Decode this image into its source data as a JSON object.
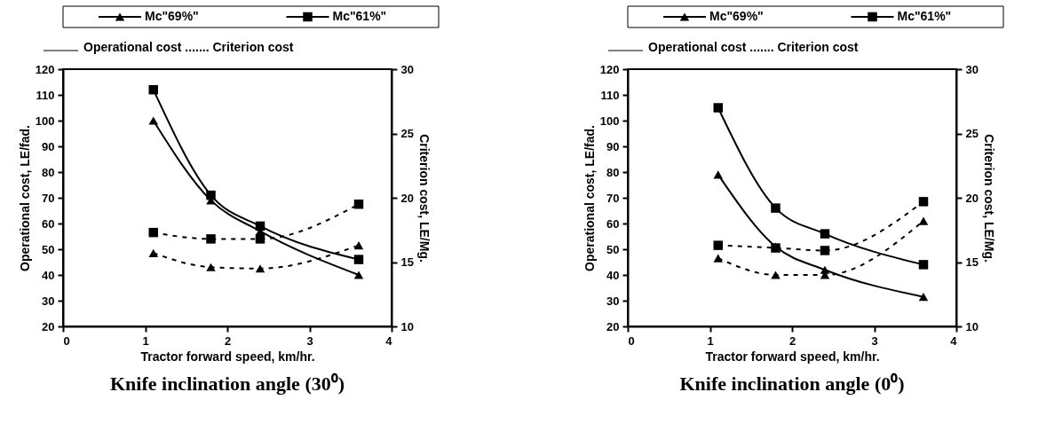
{
  "chart_data": [
    {
      "type": "line",
      "title": "Knife inclination angle (30⁰)",
      "xlabel": "Tractor forward speed, km/hr.",
      "ylabel": "Operational cost, LE/fad.",
      "y2label": "Criterion cost, LE/Mg.",
      "x": [
        1.1,
        1.8,
        2.4,
        3.6
      ],
      "xlim": [
        0,
        4
      ],
      "xticks": [
        0,
        1,
        2,
        3,
        4
      ],
      "ylim": [
        20,
        120
      ],
      "yticks": [
        20,
        30,
        40,
        50,
        60,
        70,
        80,
        90,
        100,
        110,
        120
      ],
      "y2lim": [
        10,
        30
      ],
      "y2ticks": [
        10,
        15,
        20,
        25,
        30
      ],
      "grid": false,
      "legend": "top",
      "annotations": [
        "Operational cost ....... Criterion cost"
      ],
      "series": [
        {
          "name": "Mc\"69%\"",
          "color": "#000000",
          "marker": "triangle",
          "line_style": "solid",
          "values": [
            100,
            69,
            57,
            40
          ]
        },
        {
          "name": "Mc\"61%\"",
          "color": "#000000",
          "marker": "square",
          "line_style": "solid",
          "values": [
            112,
            71,
            59,
            46
          ]
        },
        {
          "color": "#000000",
          "marker": "triangle",
          "line_style": "dashed",
          "axis": "y2",
          "values": [
            15.7,
            14.6,
            14.5,
            16.3
          ]
        },
        {
          "color": "#000000",
          "marker": "square",
          "line_style": "dashed",
          "axis": "y2",
          "values": [
            17.3,
            16.8,
            16.8,
            19.5
          ]
        }
      ]
    },
    {
      "type": "line",
      "title": "Knife inclination angle (0⁰)",
      "xlabel": "Tractor forward speed, km/hr.",
      "ylabel": "Operational cost, LE/fad.",
      "y2label": "Criterion cost, LE/Mg.",
      "x": [
        1.1,
        1.8,
        2.4,
        3.6
      ],
      "xlim": [
        0,
        4
      ],
      "xticks": [
        0,
        1,
        2,
        3,
        4
      ],
      "ylim": [
        20,
        120
      ],
      "yticks": [
        20,
        30,
        40,
        50,
        60,
        70,
        80,
        90,
        100,
        110,
        120
      ],
      "y2lim": [
        10,
        30
      ],
      "y2ticks": [
        10,
        15,
        20,
        25,
        30
      ],
      "grid": false,
      "legend": "top",
      "annotations": [
        "Operational cost ....... Criterion cost"
      ],
      "series": [
        {
          "name": "Mc\"69%\"",
          "color": "#000000",
          "marker": "triangle",
          "line_style": "solid",
          "values": [
            79,
            51,
            42,
            31.5
          ]
        },
        {
          "name": "Mc\"61%\"",
          "color": "#000000",
          "marker": "square",
          "line_style": "solid",
          "values": [
            105,
            66,
            56,
            44
          ]
        },
        {
          "color": "#000000",
          "marker": "triangle",
          "line_style": "dashed",
          "axis": "y2",
          "values": [
            15.3,
            14.0,
            14.0,
            18.2
          ]
        },
        {
          "color": "#000000",
          "marker": "square",
          "line_style": "dashed",
          "axis": "y2",
          "values": [
            16.3,
            16.1,
            15.9,
            19.7
          ]
        }
      ]
    }
  ]
}
